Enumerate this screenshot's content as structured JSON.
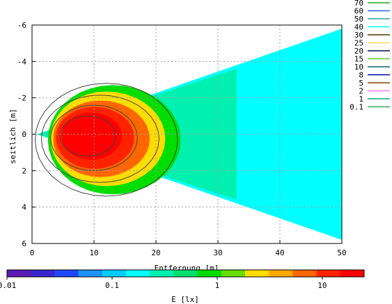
{
  "chart_data": {
    "type": "heatmap",
    "xlabel": "Entfernung [m]",
    "ylabel": "seitlich [m]",
    "xlim": [
      0,
      50
    ],
    "ylim": [
      -6,
      6
    ],
    "y_axis_inverted": true,
    "x_ticks": [
      "0",
      "10",
      "20",
      "30",
      "40",
      "50"
    ],
    "y_ticks": [
      "-6",
      "-4",
      "-2",
      "0",
      "2",
      "4",
      "6"
    ],
    "grid": true,
    "legend": {
      "placement": "top-right",
      "entries": [
        {
          "label": "70",
          "color": "#22aa22"
        },
        {
          "label": "60",
          "color": "#2266ff"
        },
        {
          "label": "50",
          "color": "#22aaaa"
        },
        {
          "label": "40",
          "color": "#00ffff"
        },
        {
          "label": "30",
          "color": "#553300"
        },
        {
          "label": "25",
          "color": "#ffdd55"
        },
        {
          "label": "20",
          "color": "#000055"
        },
        {
          "label": "15",
          "color": "#66cc22"
        },
        {
          "label": "10",
          "color": "#006666"
        },
        {
          "label": "8",
          "color": "#0000aa"
        },
        {
          "label": "5",
          "color": "#884400"
        },
        {
          "label": "2",
          "color": "#ff77ff"
        },
        {
          "label": "1",
          "color": "#00aa88"
        },
        {
          "label": "0.1",
          "color": "#33aa66"
        }
      ]
    },
    "colorbar": {
      "label": "E [lx]",
      "scale": "log",
      "range": [
        0.01,
        25
      ],
      "ticks": [
        "0.01",
        "0.1",
        "1",
        "10"
      ],
      "tick_values": [
        0.01,
        0.1,
        1,
        10
      ],
      "colors": [
        "#5a1ab4",
        "#3a28cc",
        "#1f47ff",
        "#1e90ff",
        "#00ccff",
        "#00ffff",
        "#00f0b0",
        "#00e070",
        "#00dd00",
        "#66dd00",
        "#ffdd00",
        "#ffaa00",
        "#ff6600",
        "#ff2200",
        "#ff0000"
      ]
    },
    "surface_bands": [
      {
        "level": 0.1,
        "color": "#00ffff"
      },
      {
        "level": 0.2,
        "color": "#00f0b0"
      },
      {
        "level": 0.5,
        "color": "#00dd00"
      },
      {
        "level": 2,
        "color": "#ffdd00"
      },
      {
        "level": 5,
        "color": "#ff6600"
      },
      {
        "level": 10,
        "color": "#ff2200"
      },
      {
        "level": 20,
        "color": "#ff0000"
      }
    ]
  }
}
